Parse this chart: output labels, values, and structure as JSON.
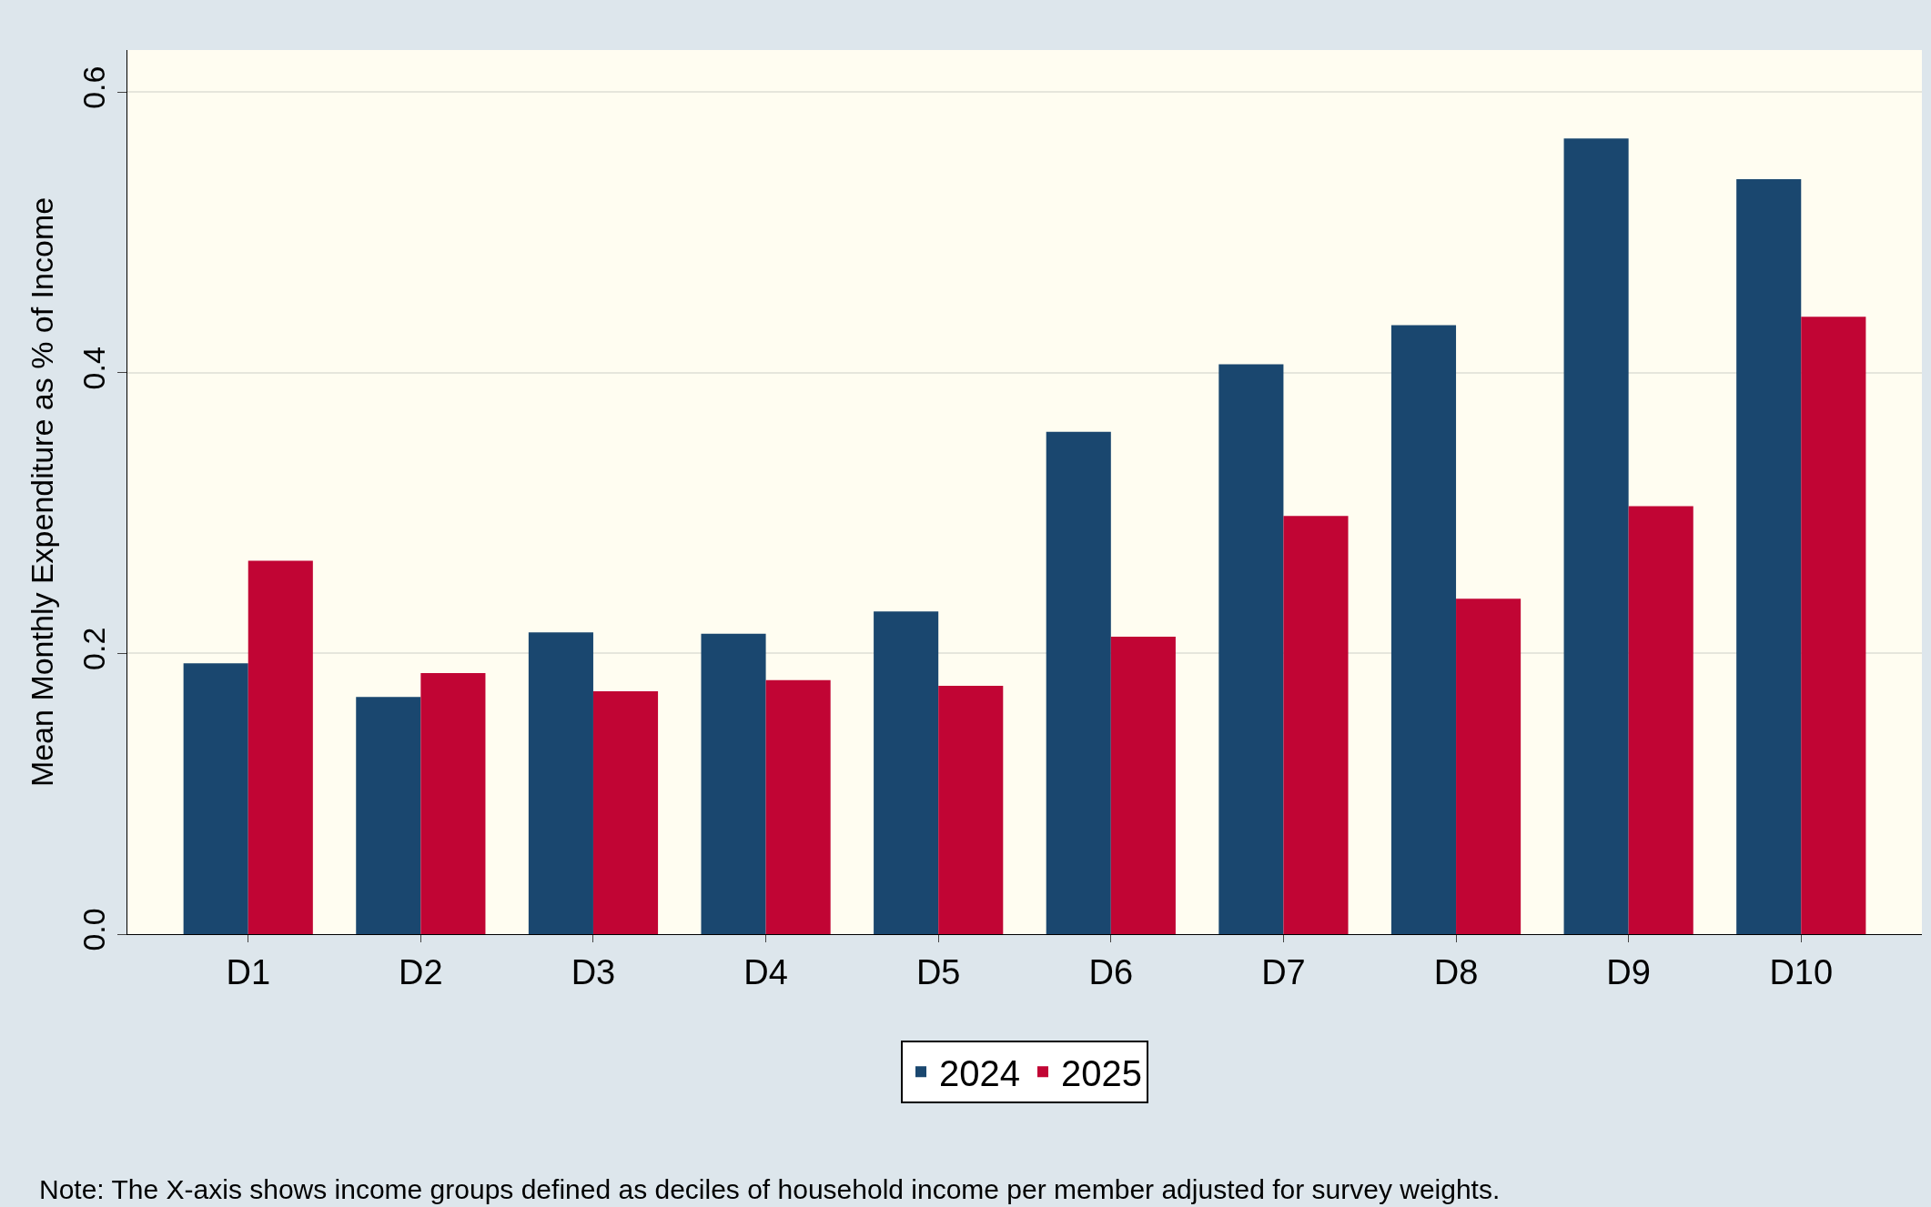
{
  "chart_data": {
    "type": "bar",
    "ylabel": "Mean Monthly Expenditure as % of Income",
    "categories": [
      "D1",
      "D2",
      "D3",
      "D4",
      "D5",
      "D6",
      "D7",
      "D8",
      "D9",
      "D10"
    ],
    "series": [
      {
        "name": "2024",
        "color": "#1a476f",
        "values": [
          0.193,
          0.169,
          0.215,
          0.214,
          0.23,
          0.358,
          0.406,
          0.434,
          0.567,
          0.538
        ]
      },
      {
        "name": "2025",
        "color": "#c10534",
        "values": [
          0.266,
          0.186,
          0.173,
          0.181,
          0.177,
          0.212,
          0.298,
          0.239,
          0.305,
          0.44
        ]
      }
    ],
    "ylim": [
      0,
      0.63
    ],
    "yticks": [
      {
        "value": 0,
        "label": "0.0"
      },
      {
        "value": 0.2,
        "label": "0.2"
      },
      {
        "value": 0.4,
        "label": "0.4"
      },
      {
        "value": 0.6,
        "label": "0.6"
      }
    ],
    "grid": "y",
    "legend": "bottom",
    "annotations": [
      "Note: The X-axis shows income groups defined as deciles of household income per member adjusted for survey weights."
    ]
  }
}
